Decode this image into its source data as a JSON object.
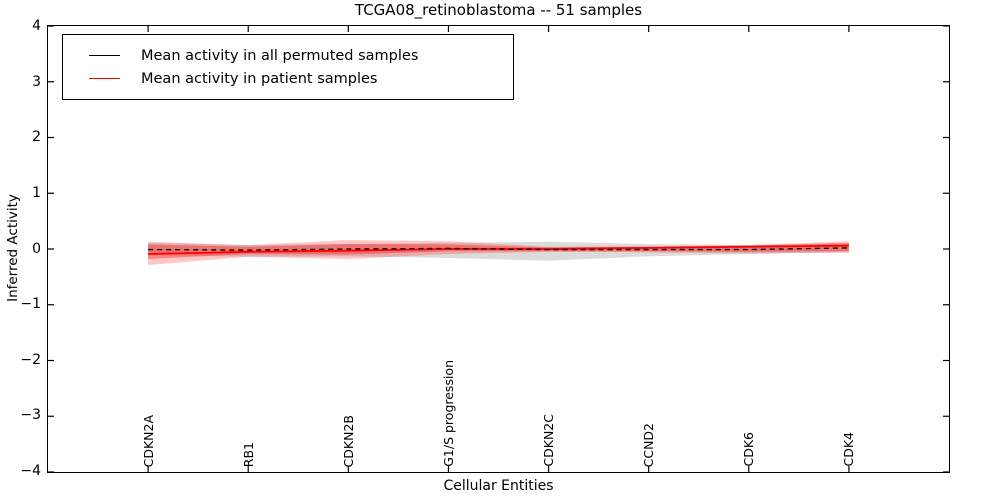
{
  "title": "TCGA08_retinoblastoma -- 51 samples",
  "axes": {
    "xlabel": "Cellular Entities",
    "ylabel": "Inferred Activity",
    "yticks": [
      "4",
      "3",
      "2",
      "1",
      "0",
      "−1",
      "−2",
      "−3",
      "−4"
    ],
    "ytick_values": [
      4,
      3,
      2,
      1,
      0,
      -1,
      -2,
      -3,
      -4
    ]
  },
  "legend": [
    {
      "label": "Mean activity in all permuted samples",
      "color": "#000000"
    },
    {
      "label": "Mean activity in patient samples",
      "color": "#ff0000"
    }
  ],
  "chart_data": {
    "type": "line",
    "title": "TCGA08_retinoblastoma -- 51 samples",
    "xlabel": "Cellular Entities",
    "ylabel": "Inferred Activity",
    "ylim": [
      -4,
      4
    ],
    "grid": false,
    "legend_position": "upper left",
    "categories": [
      "CDKN2A",
      "RB1",
      "CDKN2B",
      "G1/S progression",
      "CDKN2C",
      "CCND2",
      "CDK6",
      "CDK4"
    ],
    "series": [
      {
        "name": "Mean activity in all permuted samples",
        "color": "#000000",
        "style": "dashed",
        "width": 1.3,
        "values": [
          -0.01,
          -0.02,
          0.0,
          0.01,
          -0.01,
          -0.01,
          -0.01,
          0.02
        ]
      },
      {
        "name": "Mean activity in patient samples",
        "color": "#ff0000",
        "style": "solid",
        "width": 1.8,
        "values": [
          -0.09,
          -0.05,
          -0.03,
          0.0,
          0.0,
          0.02,
          0.04,
          0.06
        ]
      }
    ],
    "bands": [
      {
        "name": "permuted-samples-range",
        "color": "rgba(0,0,0,0.14)",
        "upper": [
          0.11,
          0.07,
          0.09,
          0.11,
          0.13,
          0.09,
          0.07,
          0.09
        ],
        "lower": [
          -0.11,
          -0.14,
          -0.13,
          -0.16,
          -0.21,
          -0.13,
          -0.09,
          -0.05
        ]
      },
      {
        "name": "patient-samples-range-outer",
        "color": "rgba(255,0,0,0.22)",
        "upper": [
          0.13,
          0.07,
          0.16,
          0.14,
          0.04,
          0.05,
          0.07,
          0.14
        ],
        "lower": [
          -0.29,
          -0.14,
          -0.18,
          -0.09,
          -0.05,
          -0.06,
          -0.08,
          -0.07
        ]
      },
      {
        "name": "patient-samples-range-inner",
        "color": "rgba(255,0,0,0.33)",
        "upper": [
          0.08,
          0.04,
          0.09,
          0.08,
          0.03,
          0.04,
          0.06,
          0.11
        ],
        "lower": [
          -0.18,
          -0.09,
          -0.1,
          -0.04,
          -0.04,
          -0.04,
          -0.05,
          -0.04
        ]
      }
    ]
  }
}
